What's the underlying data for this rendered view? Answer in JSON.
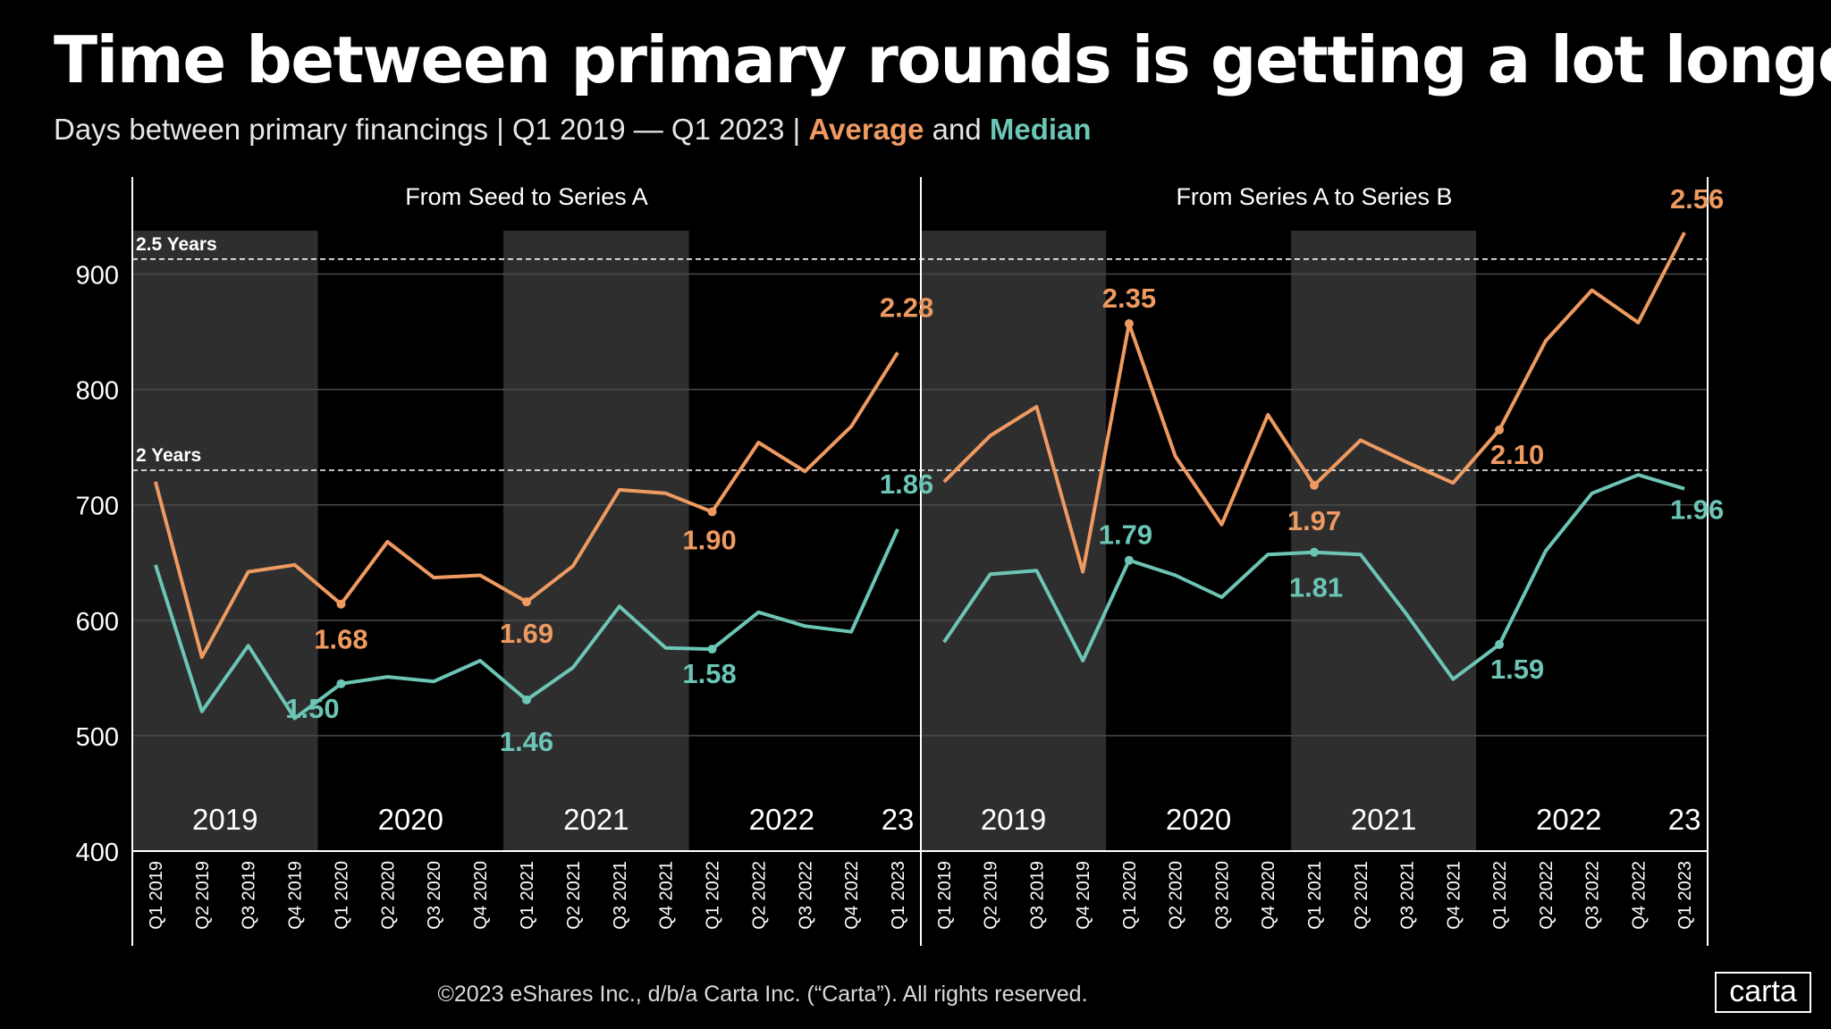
{
  "header": {
    "title": "Time between primary rounds is getting a lot longer",
    "subtitle_prefix": "Days between primary financings | Q1 2019 — Q1 2023 | ",
    "subtitle_avg": "Average",
    "subtitle_and": " and ",
    "subtitle_med": "Median"
  },
  "colors": {
    "average": "#ee9a61",
    "median": "#6cc5b5",
    "band": "#2e2e2e",
    "grid": "#4a4a4a"
  },
  "chart_data": {
    "type": "line",
    "ylim": [
      400,
      950
    ],
    "yticks": [
      400,
      500,
      600,
      700,
      800,
      900
    ],
    "x": [
      "Q1 2019",
      "Q2 2019",
      "Q3 2019",
      "Q4 2019",
      "Q1 2020",
      "Q2 2020",
      "Q3 2020",
      "Q4 2020",
      "Q1 2021",
      "Q2 2021",
      "Q3 2021",
      "Q4 2021",
      "Q1 2022",
      "Q2 2022",
      "Q3 2022",
      "Q4 2022",
      "Q1 2023"
    ],
    "year_labels": [
      "2019",
      "2020",
      "2021",
      "2022",
      "23"
    ],
    "reference_lines": [
      {
        "label": "2.5 Years",
        "value": 913
      },
      {
        "label": "2 Years",
        "value": 730
      }
    ],
    "panels": [
      {
        "title": "From Seed to Series A",
        "series": [
          {
            "name": "Average",
            "values": [
              720,
              568,
              642,
              648,
              614,
              668,
              637,
              639,
              616,
              647,
              713,
              710,
              694,
              754,
              729,
              768,
              832
            ]
          },
          {
            "name": "Median",
            "values": [
              648,
              521,
              578,
              515,
              545,
              551,
              547,
              565,
              531,
              559,
              612,
              576,
              575,
              607,
              595,
              590,
              679
            ]
          }
        ],
        "annotations": [
          {
            "series": "Average",
            "index": 4,
            "label": "1.68",
            "dot": true
          },
          {
            "series": "Average",
            "index": 8,
            "label": "1.69",
            "dot": true
          },
          {
            "series": "Average",
            "index": 12,
            "label": "1.90",
            "dot": true
          },
          {
            "series": "Average",
            "index": 16,
            "label": "2.28",
            "dot": false
          },
          {
            "series": "Median",
            "index": 4,
            "label": "1.50",
            "dot": true
          },
          {
            "series": "Median",
            "index": 8,
            "label": "1.46",
            "dot": true
          },
          {
            "series": "Median",
            "index": 12,
            "label": "1.58",
            "dot": true
          },
          {
            "series": "Median",
            "index": 16,
            "label": "1.86",
            "dot": false
          }
        ]
      },
      {
        "title": "From Series A to Series B",
        "series": [
          {
            "name": "Average",
            "values": [
              720,
              760,
              785,
              642,
              857,
              742,
              683,
              778,
              717,
              756,
              737,
              719,
              765,
              842,
              886,
              858,
              936
            ]
          },
          {
            "name": "Median",
            "values": [
              581,
              640,
              643,
              565,
              652,
              639,
              620,
              657,
              659,
              657,
              605,
              549,
              579,
              660,
              710,
              726,
              714
            ]
          }
        ],
        "annotations": [
          {
            "series": "Average",
            "index": 4,
            "label": "2.35",
            "dot": true
          },
          {
            "series": "Average",
            "index": 8,
            "label": "1.97",
            "dot": true
          },
          {
            "series": "Average",
            "index": 12,
            "label": "2.10",
            "dot": true
          },
          {
            "series": "Average",
            "index": 16,
            "label": "2.56",
            "dot": false
          },
          {
            "series": "Median",
            "index": 4,
            "label": "1.79",
            "dot": true
          },
          {
            "series": "Median",
            "index": 8,
            "label": "1.81",
            "dot": true
          },
          {
            "series": "Median",
            "index": 12,
            "label": "1.59",
            "dot": true
          },
          {
            "series": "Median",
            "index": 16,
            "label": "1.96",
            "dot": false
          }
        ]
      }
    ]
  },
  "footer": {
    "copyright": "©2023 eShares Inc., d/b/a Carta Inc. (“Carta”). All rights reserved."
  },
  "brand": {
    "logo_text": "carta"
  }
}
